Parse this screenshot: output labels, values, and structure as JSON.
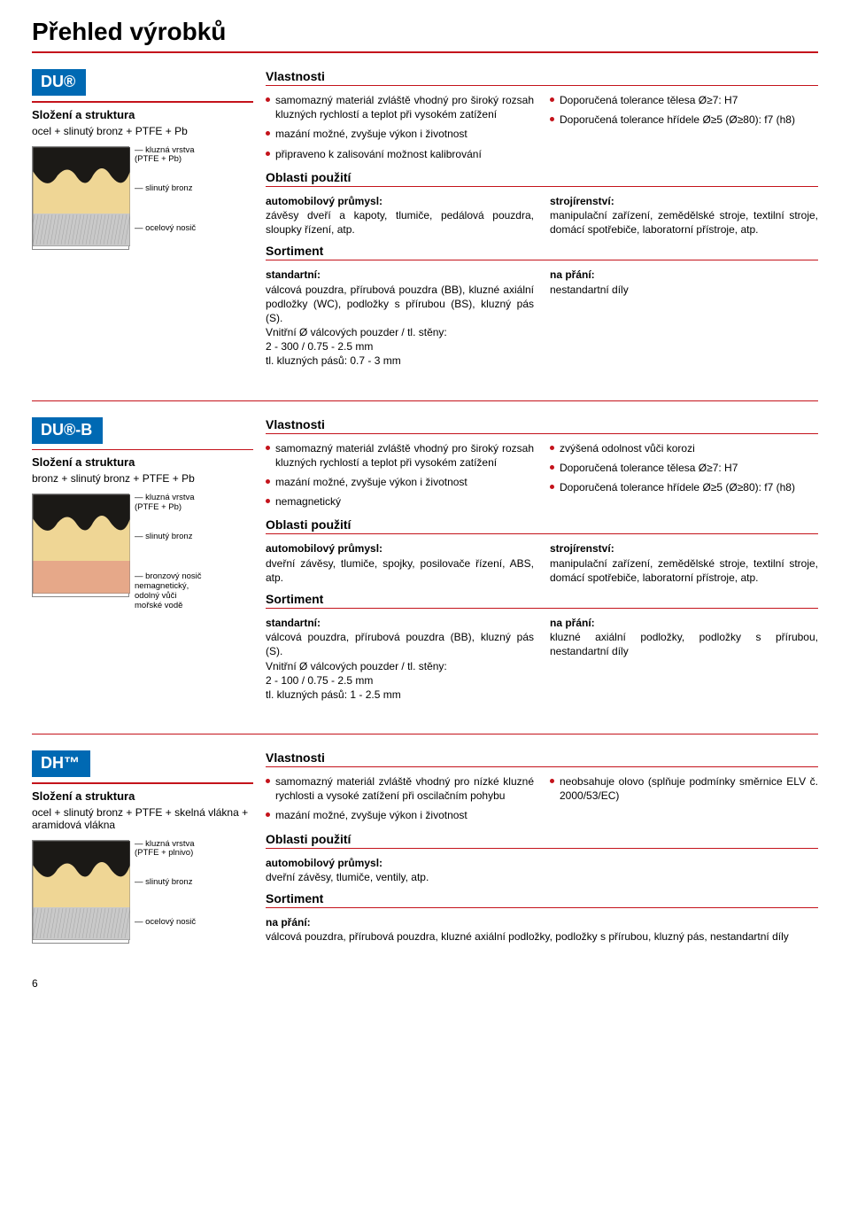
{
  "page": {
    "title": "Přehled výrobků",
    "number": "6"
  },
  "colors": {
    "accent": "#0069b3",
    "rule": "#c4131b",
    "text": "#000000"
  },
  "labels": {
    "struktura": "Složení a struktura",
    "vlastnosti": "Vlastnosti",
    "oblasti": "Oblasti použití",
    "sortiment": "Sortiment",
    "standartni": "standartní:",
    "na_prani": "na přání:",
    "auto": "automobilový průmysl:",
    "stroj": "strojírenství:"
  },
  "products": [
    {
      "badge": "DU®",
      "composition": "ocel + slinutý bronz + PTFE + Pb",
      "diag": {
        "layerLabels": [
          "kluzná vrstva\n(PTFE + Pb)",
          "slinutý bronz",
          "ocelový nosič"
        ],
        "type": "steel"
      },
      "vlastnosti_left": [
        "samomazný materiál zvláště vhodný pro široký rozsah kluzných rychlostí a teplot při vysokém zatížení",
        "mazání možné, zvyšuje výkon i životnost",
        "připraveno k zalisování možnost kalibrování"
      ],
      "vlastnosti_right": [
        "Doporučená tolerance tělesa Ø≥7: H7",
        "Doporučená tolerance hřídele Ø≥5 (Ø≥80): f7 (h8)"
      ],
      "auto": "závěsy dveří a kapoty, tlumiče, pedálová pouzdra, sloupky řízení, atp.",
      "stroj": "manipulační zařízení, zemědělské stroje, textilní stroje, domácí spotřebiče, laboratorní přístroje, atp.",
      "std": "válcová pouzdra, přírubová pouzdra (BB), kluzné axiální podložky (WC), podložky s přírubou (BS), kluzný pás (S).\nVnitřní Ø válcových pouzder / tl. stěny:\n2 - 300 / 0.75 - 2.5 mm\ntl. kluzných pásů: 0.7 - 3 mm",
      "prani": "nestandartní díly"
    },
    {
      "badge": "DU®-B",
      "composition": "bronz + slinutý bronz + PTFE + Pb",
      "diag": {
        "layerLabels": [
          "kluzná vrstva\n(PTFE + Pb)",
          "slinutý bronz",
          "bronzový nosič\nnemagnetický,\nodolný vůči\nmořské vodě"
        ],
        "type": "bronze"
      },
      "vlastnosti_left": [
        "samomazný materiál zvláště vhodný pro široký rozsah kluzných rychlostí a teplot při vysokém zatížení",
        "mazání možné, zvyšuje výkon i životnost",
        "nemagnetický"
      ],
      "vlastnosti_right": [
        "zvýšená odolnost vůči korozi",
        "Doporučená tolerance tělesa Ø≥7: H7",
        "Doporučená tolerance hřídele Ø≥5 (Ø≥80): f7 (h8)"
      ],
      "auto": "dveřní závěsy, tlumiče, spojky, posilovače řízení, ABS, atp.",
      "stroj": "manipulační zařízení, zemědělské stroje, textilní stroje, domácí spotřebiče, laboratorní přístroje, atp.",
      "std": "válcová pouzdra, přírubová pouzdra (BB), kluzný pás (S).\nVnitřní Ø válcových pouzder / tl. stěny:\n2 - 100 / 0.75 - 2.5 mm\ntl. kluzných pásů: 1 - 2.5 mm",
      "prani": "kluzné axiální podložky, podložky s přírubou, nestandartní díly"
    },
    {
      "badge": "DH™",
      "composition": "ocel + slinutý bronz + PTFE + skelná vlákna + aramidová vlákna",
      "diag": {
        "layerLabels": [
          "kluzná vrstva\n(PTFE + plnivo)",
          "slinutý bronz",
          "ocelový nosič"
        ],
        "type": "steel"
      },
      "vlastnosti_left": [
        "samomazný materiál zvláště vhodný pro nízké kluzné rychlosti a vysoké zatížení při oscilačním pohybu",
        "mazání možné, zvyšuje výkon i životnost"
      ],
      "vlastnosti_right": [
        "neobsahuje olovo (splňuje podmínky směrnice ELV č. 2000/53/EC)"
      ],
      "auto": "dveřní závěsy, tlumiče, ventily, atp.",
      "stroj": null,
      "std": null,
      "prani_full": "válcová pouzdra, přírubová pouzdra, kluzné axiální podložky, podložky s přírubou, kluzný pás, nestandartní díly"
    }
  ]
}
